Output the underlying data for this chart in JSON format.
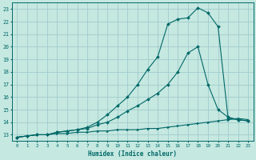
{
  "title": "",
  "xlabel": "Humidex (Indice chaleur)",
  "xlim": [
    -0.5,
    23.5
  ],
  "ylim": [
    12.5,
    23.5
  ],
  "xticks": [
    0,
    1,
    2,
    3,
    4,
    5,
    6,
    7,
    8,
    9,
    10,
    11,
    12,
    13,
    14,
    15,
    16,
    17,
    18,
    19,
    20,
    21,
    22,
    23
  ],
  "yticks": [
    13,
    14,
    15,
    16,
    17,
    18,
    19,
    20,
    21,
    22,
    23
  ],
  "background_color": "#c5e8e0",
  "grid_color": "#a0cccc",
  "line_color": "#006868",
  "line1_x": [
    0,
    1,
    2,
    3,
    4,
    5,
    6,
    7,
    8,
    9,
    10,
    11,
    12,
    13,
    14,
    15,
    16,
    17,
    18,
    19,
    20,
    21,
    22,
    23
  ],
  "line1_y": [
    12.8,
    12.9,
    13.0,
    13.0,
    13.1,
    13.1,
    13.2,
    13.2,
    13.3,
    13.3,
    13.4,
    13.4,
    13.4,
    13.5,
    13.5,
    13.6,
    13.7,
    13.8,
    13.9,
    14.0,
    14.1,
    14.2,
    14.3,
    14.2
  ],
  "line2_x": [
    0,
    1,
    2,
    3,
    4,
    5,
    6,
    7,
    8,
    9,
    10,
    11,
    12,
    13,
    14,
    15,
    16,
    17,
    18,
    19,
    20,
    21,
    22,
    23
  ],
  "line2_y": [
    12.8,
    12.9,
    13.0,
    13.0,
    13.2,
    13.3,
    13.4,
    13.5,
    13.8,
    14.0,
    14.4,
    14.9,
    15.3,
    15.8,
    16.3,
    17.0,
    18.0,
    19.5,
    20.0,
    17.0,
    15.0,
    14.4,
    14.2,
    14.1
  ],
  "line3_x": [
    0,
    1,
    2,
    3,
    4,
    5,
    6,
    7,
    8,
    9,
    10,
    11,
    12,
    13,
    14,
    15,
    16,
    17,
    18,
    19,
    20,
    21,
    22,
    23
  ],
  "line3_y": [
    12.8,
    12.9,
    13.0,
    13.0,
    13.2,
    13.3,
    13.4,
    13.6,
    14.0,
    14.6,
    15.3,
    16.0,
    17.0,
    18.2,
    19.2,
    21.8,
    22.2,
    22.3,
    23.1,
    22.7,
    21.6,
    14.3,
    14.2,
    14.1
  ]
}
